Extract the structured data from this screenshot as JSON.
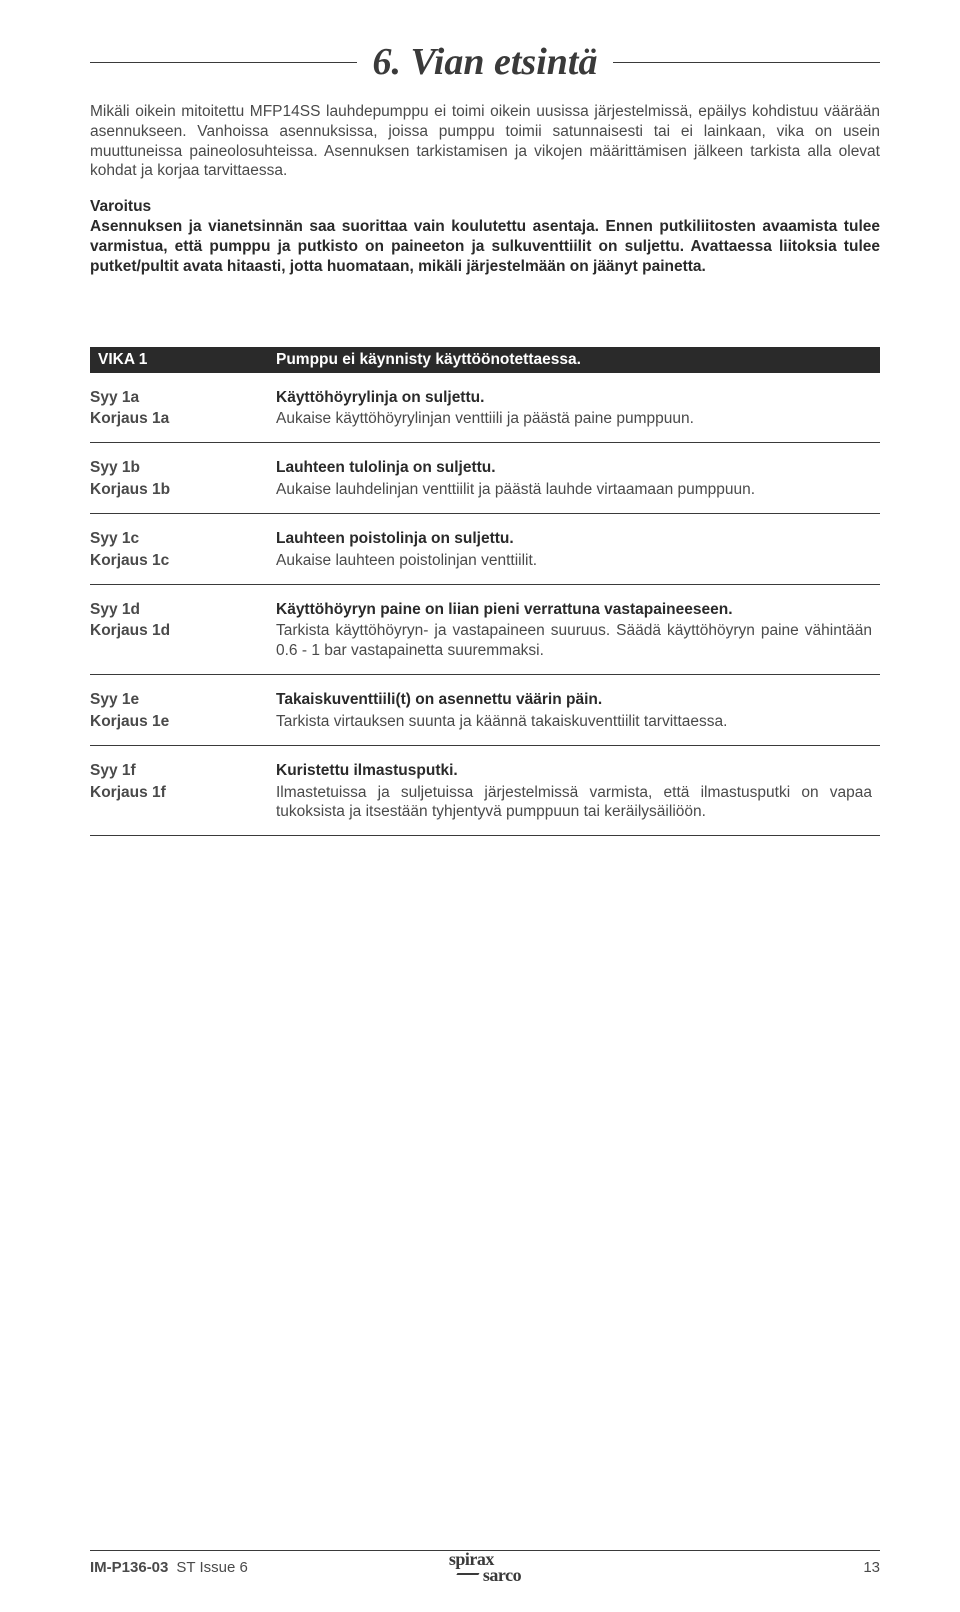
{
  "section": {
    "title": "6. Vian etsintä"
  },
  "intro": "Mikäli oikein mitoitettu MFP14SS lauhdepumppu ei toimi oikein uusissa järjestelmissä, epäilys kohdistuu väärään asennukseen. Vanhoissa asennuksissa, joissa pumppu toimii satunnaisesti tai ei lainkaan, vika on usein muuttuneissa paineolosuhteissa. Asennuksen tarkistamisen ja vikojen määrittämisen jälkeen tarkista alla olevat kohdat ja korjaa tarvittaessa.",
  "warning": {
    "head": "Varoitus",
    "body": "Asennuksen ja vianetsinnän saa suorittaa vain koulutettu asentaja. Ennen putkiliitosten avaamista tulee varmistua, että  pumppu ja putkisto on paineeton ja sulkuventtiilit on suljettu. Avattaessa liitoksia tulee putket/pultit avata hitaasti, jotta huomataan, mikäli järjestelmään on jäänyt painetta."
  },
  "fault": {
    "code": "VIKA 1",
    "desc": "Pumppu ei käynnisty käyttöönotettaessa."
  },
  "items": [
    {
      "cause_label": "Syy 1a",
      "cause_text": "Käyttöhöyrylinja on suljettu.",
      "fix_label": "Korjaus 1a",
      "fix_text": "Aukaise käyttöhöyrylinjan venttiili ja päästä paine pumppuun."
    },
    {
      "cause_label": "Syy 1b",
      "cause_text": "Lauhteen tulolinja on suljettu.",
      "fix_label": "Korjaus 1b",
      "fix_text": "Aukaise lauhdelinjan venttiilit ja päästä lauhde virtaamaan pumppuun."
    },
    {
      "cause_label": "Syy 1c",
      "cause_text": "Lauhteen poistolinja on suljettu.",
      "fix_label": "Korjaus 1c",
      "fix_text": "Aukaise lauhteen poistolinjan venttiilit."
    },
    {
      "cause_label": "Syy 1d",
      "cause_text": "Käyttöhöyryn paine on liian pieni verrattuna vastapaineeseen.",
      "fix_label": "Korjaus 1d",
      "fix_text": "Tarkista käyttöhöyryn- ja vastapaineen suuruus. Säädä käyttöhöyryn paine vähintään 0.6 - 1 bar vastapainetta suuremmaksi."
    },
    {
      "cause_label": "Syy 1e",
      "cause_text": "Takaiskuventtiili(t) on asennettu väärin päin.",
      "fix_label": "Korjaus 1e",
      "fix_text": "Tarkista virtauksen suunta ja käännä takaiskuventtiilit tarvittaessa."
    },
    {
      "cause_label": "Syy 1f",
      "cause_text": "Kuristettu ilmastusputki.",
      "fix_label": "Korjaus 1f",
      "fix_text": "Ilmastetuissa ja suljetuissa järjestelmissä varmista, että ilmastusputki on vapaa tukoksista ja itsestään tyhjentyvä pumppuun tai keräilysäiliöön."
    }
  ],
  "footer": {
    "docref": "IM-P136-03",
    "issue": "ST Issue 6",
    "logo_l1": "spirax",
    "logo_l2": "sarco",
    "page": "13"
  }
}
